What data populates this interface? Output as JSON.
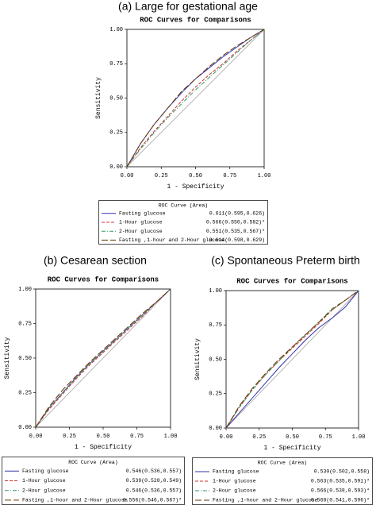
{
  "chart_data": [
    {
      "type": "line",
      "title": "(a) Large for gestational age",
      "subtitle": "ROC Curves for Comparisons",
      "xlabel": "1 - Specificity",
      "ylabel": "Sensitivity",
      "legend_title": "ROC Curve (Area)",
      "xlim": [
        0,
        1
      ],
      "ylim": [
        0,
        1
      ],
      "xticks": [
        {
          "value": 0,
          "label": "0.00"
        },
        {
          "value": 0.25,
          "label": "0.25"
        },
        {
          "value": 0.5,
          "label": "0.50"
        },
        {
          "value": 0.75,
          "label": "0.75"
        },
        {
          "value": 1,
          "label": "1.00"
        }
      ],
      "yticks": [
        {
          "value": 0,
          "label": "0.00"
        },
        {
          "value": 0.25,
          "label": "0.25"
        },
        {
          "value": 0.5,
          "label": "0.50"
        },
        {
          "value": 0.75,
          "label": "0.75"
        },
        {
          "value": 1,
          "label": "1.00"
        }
      ],
      "x": [
        0,
        0.1,
        0.2,
        0.3,
        0.4,
        0.5,
        0.6,
        0.7,
        0.8,
        0.9,
        1
      ],
      "series": [
        {
          "name": "Fasting glucose",
          "area_label": "0.611(0.595,0.626)",
          "color": "#3333aa",
          "style": "solid",
          "values": [
            0,
            0.17,
            0.31,
            0.43,
            0.54,
            0.64,
            0.72,
            0.8,
            0.87,
            0.94,
            1
          ]
        },
        {
          "name": "1-Hour glucose",
          "area_label": "0.566(0.550,0.582)*",
          "color": "#cc3333",
          "style": "dashed",
          "values": [
            0,
            0.14,
            0.26,
            0.37,
            0.48,
            0.58,
            0.67,
            0.75,
            0.84,
            0.92,
            1
          ]
        },
        {
          "name": "2-Hour glucose",
          "area_label": "0.551(0.535,0.567)*",
          "color": "#339966",
          "style": "dashdot",
          "values": [
            0,
            0.13,
            0.25,
            0.36,
            0.46,
            0.56,
            0.65,
            0.74,
            0.83,
            0.92,
            1
          ]
        },
        {
          "name": "Fasting ,1-hour and 2-Hour glucose",
          "area_label": "0.614(0.598,0.629)",
          "color": "#663300",
          "style": "longdash",
          "values": [
            0,
            0.17,
            0.31,
            0.43,
            0.55,
            0.64,
            0.73,
            0.81,
            0.88,
            0.94,
            1
          ]
        }
      ]
    },
    {
      "type": "line",
      "title": "(b) Cesarean section",
      "subtitle": "ROC Curves for Comparisons",
      "xlabel": "1 - Specificity",
      "ylabel": "Sensitivity",
      "legend_title": "ROC Curve (Area)",
      "xlim": [
        0,
        1
      ],
      "ylim": [
        0,
        1
      ],
      "xticks": [
        {
          "value": 0,
          "label": "0.00"
        },
        {
          "value": 0.25,
          "label": "0.25"
        },
        {
          "value": 0.5,
          "label": "0.50"
        },
        {
          "value": 0.75,
          "label": "0.75"
        },
        {
          "value": 1,
          "label": "1.00"
        }
      ],
      "yticks": [
        {
          "value": 0,
          "label": "0.00"
        },
        {
          "value": 0.25,
          "label": "0.25"
        },
        {
          "value": 0.5,
          "label": "0.50"
        },
        {
          "value": 0.75,
          "label": "0.75"
        },
        {
          "value": 1,
          "label": "1.00"
        }
      ],
      "x": [
        0,
        0.1,
        0.2,
        0.3,
        0.4,
        0.5,
        0.6,
        0.7,
        0.8,
        0.9,
        1
      ],
      "series": [
        {
          "name": "Fasting glucose",
          "area_label": "0.546(0.536,0.557)",
          "color": "#3333aa",
          "style": "solid",
          "values": [
            0,
            0.14,
            0.25,
            0.36,
            0.46,
            0.55,
            0.64,
            0.73,
            0.82,
            0.91,
            1
          ]
        },
        {
          "name": "1-Hour glucose",
          "area_label": "0.539(0.528,0.549)",
          "color": "#cc3333",
          "style": "dashed",
          "values": [
            0,
            0.13,
            0.24,
            0.35,
            0.45,
            0.54,
            0.63,
            0.72,
            0.81,
            0.91,
            1
          ]
        },
        {
          "name": "2-Hour glucose",
          "area_label": "0.546(0.536,0.557)",
          "color": "#339966",
          "style": "dashdot",
          "values": [
            0,
            0.14,
            0.25,
            0.36,
            0.46,
            0.55,
            0.64,
            0.73,
            0.82,
            0.91,
            1
          ]
        },
        {
          "name": "Fasting ,1-hour and 2-Hour glucose",
          "area_label": "0.556(0.546,0.567)*",
          "color": "#663300",
          "style": "longdash",
          "values": [
            0,
            0.15,
            0.27,
            0.37,
            0.47,
            0.56,
            0.65,
            0.74,
            0.83,
            0.91,
            1
          ]
        }
      ]
    },
    {
      "type": "line",
      "title": "(c) Spontaneous Preterm birth",
      "subtitle": "ROC Curves for Comparisons",
      "xlabel": "1 - Specificity",
      "ylabel": "Sensitivity",
      "legend_title": "ROC Curve (Area)",
      "xlim": [
        0,
        1
      ],
      "ylim": [
        0,
        1
      ],
      "xticks": [
        {
          "value": 0,
          "label": "0.00"
        },
        {
          "value": 0.25,
          "label": "0.25"
        },
        {
          "value": 0.5,
          "label": "0.50"
        },
        {
          "value": 0.75,
          "label": "0.75"
        },
        {
          "value": 1,
          "label": "1.00"
        }
      ],
      "yticks": [
        {
          "value": 0,
          "label": "0.00"
        },
        {
          "value": 0.25,
          "label": "0.25"
        },
        {
          "value": 0.5,
          "label": "0.50"
        },
        {
          "value": 0.75,
          "label": "0.75"
        },
        {
          "value": 1,
          "label": "1.00"
        }
      ],
      "x": [
        0,
        0.1,
        0.2,
        0.3,
        0.4,
        0.5,
        0.6,
        0.7,
        0.8,
        0.9,
        1
      ],
      "series": [
        {
          "name": "Fasting glucose",
          "area_label": "0.530(0.502,0.558)",
          "color": "#3333aa",
          "style": "solid",
          "values": [
            0,
            0.11,
            0.22,
            0.33,
            0.44,
            0.54,
            0.64,
            0.73,
            0.8,
            0.88,
            1
          ]
        },
        {
          "name": "1-Hour glucose",
          "area_label": "0.563(0.535,0.591)*",
          "color": "#cc3333",
          "style": "dashed",
          "values": [
            0,
            0.15,
            0.28,
            0.39,
            0.49,
            0.58,
            0.67,
            0.76,
            0.86,
            0.93,
            1
          ]
        },
        {
          "name": "2-Hour glucose",
          "area_label": "0.566(0.538,0.593)*",
          "color": "#339966",
          "style": "dashdot",
          "values": [
            0,
            0.15,
            0.28,
            0.39,
            0.49,
            0.59,
            0.68,
            0.77,
            0.87,
            0.93,
            1
          ]
        },
        {
          "name": "Fasting ,1-hour and 2-Hour glucose",
          "area_label": "0.568(0.541,0.596)*",
          "color": "#663300",
          "style": "longdash",
          "values": [
            0,
            0.16,
            0.29,
            0.4,
            0.5,
            0.59,
            0.68,
            0.77,
            0.86,
            0.93,
            1
          ]
        }
      ]
    }
  ]
}
